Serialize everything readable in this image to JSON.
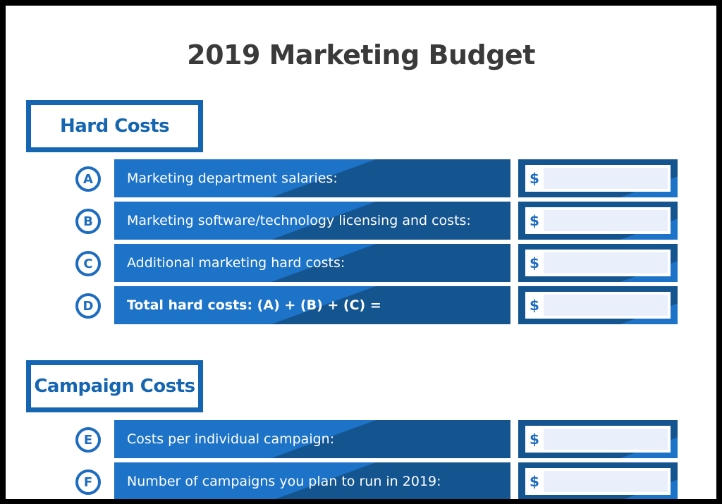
{
  "title": "2019 Marketing Budget",
  "sections": {
    "hard_costs": {
      "heading": "Hard Costs",
      "rows": [
        {
          "letter": "A",
          "label": "Marketing department salaries:",
          "currency": "$",
          "value": ""
        },
        {
          "letter": "B",
          "label": "Marketing software/technology licensing and costs:",
          "currency": "$",
          "value": ""
        },
        {
          "letter": "C",
          "label": "Additional marketing hard costs:",
          "currency": "$",
          "value": ""
        },
        {
          "letter": "D",
          "label": "Total hard costs: (A) + (B) + (C) =",
          "currency": "$",
          "value": ""
        }
      ]
    },
    "campaign_costs": {
      "heading": "Campaign Costs",
      "rows": [
        {
          "letter": "E",
          "label": "Costs per individual campaign:",
          "currency": "$",
          "value": ""
        },
        {
          "letter": "F",
          "label": "Number of campaigns you plan to run in 2019:",
          "currency": "$",
          "value": ""
        }
      ]
    }
  },
  "colors": {
    "primary_blue": "#1d73c7",
    "dark_blue": "#14548f",
    "field_fill": "#e9effb",
    "title_text": "#3a3a3a"
  }
}
